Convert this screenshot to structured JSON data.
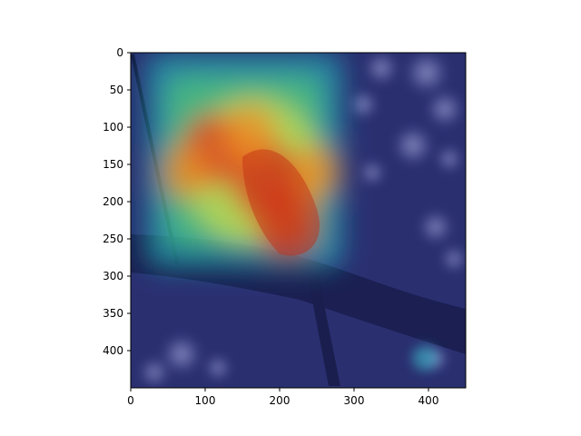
{
  "chart_data": {
    "type": "heatmap",
    "description_source": "image with attention heatmap overlay (jet colormap) on a photo of a bird perched on a branch",
    "xlim": [
      0,
      450
    ],
    "ylim": [
      450,
      0
    ],
    "x_ticks": [
      0,
      100,
      200,
      300,
      400
    ],
    "y_ticks": [
      0,
      50,
      100,
      150,
      200,
      250,
      300,
      350,
      400
    ],
    "x_tick_labels": [
      "0",
      "100",
      "200",
      "300",
      "400"
    ],
    "y_tick_labels": [
      "0",
      "50",
      "100",
      "150",
      "200",
      "250",
      "300",
      "350",
      "400"
    ],
    "grid": false,
    "colormap": "jet",
    "background_color": "#2a2f70",
    "heatmap_region": {
      "x": [
        20,
        285
      ],
      "y": [
        0,
        290
      ]
    },
    "hotspots": [
      {
        "x": 180,
        "y": 170,
        "intensity": 1.0
      },
      {
        "x": 110,
        "y": 130,
        "intensity": 0.9
      },
      {
        "x": 210,
        "y": 230,
        "intensity": 0.85
      },
      {
        "x": 160,
        "y": 110,
        "intensity": 0.7
      },
      {
        "x": 70,
        "y": 160,
        "intensity": 0.6
      },
      {
        "x": 250,
        "y": 160,
        "intensity": 0.6
      }
    ]
  }
}
